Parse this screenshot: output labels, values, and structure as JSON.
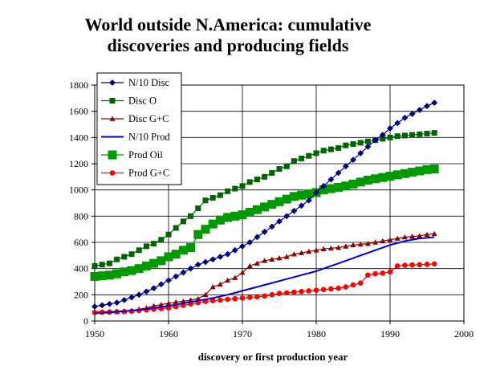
{
  "chart_data": {
    "type": "line",
    "title_lines": [
      "World outside N.America: cumulative",
      "discoveries and producing fields"
    ],
    "xlabel": "discovery or first production year",
    "ylabel": "",
    "xlim": [
      1950,
      2000
    ],
    "ylim": [
      0,
      1800
    ],
    "x_ticks": [
      1950,
      1960,
      1970,
      1980,
      1990,
      2000
    ],
    "y_ticks": [
      0,
      200,
      400,
      600,
      800,
      1000,
      1200,
      1400,
      1600,
      1800
    ],
    "grid": true,
    "legend_position": "top-left",
    "series": [
      {
        "name": "N/10 Disc",
        "color": "#000080",
        "marker": "diamond",
        "x": [
          1950,
          1951,
          1952,
          1953,
          1954,
          1955,
          1956,
          1957,
          1958,
          1959,
          1960,
          1961,
          1962,
          1963,
          1964,
          1965,
          1966,
          1967,
          1968,
          1969,
          1970,
          1971,
          1972,
          1973,
          1974,
          1975,
          1976,
          1977,
          1978,
          1979,
          1980,
          1981,
          1982,
          1983,
          1984,
          1985,
          1986,
          1987,
          1988,
          1989,
          1990,
          1991,
          1992,
          1993,
          1994,
          1995,
          1996
        ],
        "values": [
          110,
          120,
          130,
          140,
          160,
          180,
          200,
          225,
          250,
          280,
          310,
          340,
          370,
          400,
          430,
          450,
          470,
          490,
          510,
          540,
          570,
          600,
          640,
          680,
          720,
          760,
          800,
          840,
          880,
          920,
          980,
          1030,
          1080,
          1130,
          1180,
          1230,
          1280,
          1330,
          1380,
          1420,
          1470,
          1510,
          1550,
          1580,
          1610,
          1640,
          1665
        ]
      },
      {
        "name": "Disc O",
        "color": "#006400",
        "marker": "square",
        "x": [
          1950,
          1951,
          1952,
          1953,
          1954,
          1955,
          1956,
          1957,
          1958,
          1959,
          1960,
          1961,
          1962,
          1963,
          1964,
          1965,
          1966,
          1967,
          1968,
          1969,
          1970,
          1971,
          1972,
          1973,
          1974,
          1975,
          1976,
          1977,
          1978,
          1979,
          1980,
          1981,
          1982,
          1983,
          1984,
          1985,
          1986,
          1987,
          1988,
          1989,
          1990,
          1991,
          1992,
          1993,
          1994,
          1995,
          1996
        ],
        "values": [
          420,
          430,
          440,
          470,
          490,
          510,
          540,
          570,
          590,
          620,
          660,
          710,
          760,
          800,
          860,
          920,
          940,
          960,
          990,
          1010,
          1030,
          1060,
          1080,
          1100,
          1130,
          1160,
          1180,
          1220,
          1240,
          1260,
          1280,
          1300,
          1310,
          1320,
          1340,
          1350,
          1360,
          1370,
          1380,
          1390,
          1400,
          1410,
          1415,
          1420,
          1425,
          1430,
          1435
        ]
      },
      {
        "name": "Disc G+C",
        "color": "#8B0000",
        "marker": "triangle",
        "x": [
          1950,
          1951,
          1952,
          1953,
          1954,
          1955,
          1956,
          1957,
          1958,
          1959,
          1960,
          1961,
          1962,
          1963,
          1964,
          1965,
          1966,
          1967,
          1968,
          1969,
          1970,
          1971,
          1972,
          1973,
          1974,
          1975,
          1976,
          1977,
          1978,
          1979,
          1980,
          1981,
          1982,
          1983,
          1984,
          1985,
          1986,
          1987,
          1988,
          1989,
          1990,
          1991,
          1992,
          1993,
          1994,
          1995,
          1996
        ],
        "values": [
          70,
          70,
          72,
          74,
          76,
          80,
          90,
          100,
          115,
          125,
          135,
          145,
          150,
          160,
          170,
          200,
          260,
          280,
          310,
          330,
          370,
          420,
          440,
          460,
          470,
          480,
          490,
          510,
          520,
          530,
          540,
          550,
          555,
          560,
          570,
          580,
          585,
          590,
          600,
          610,
          620,
          630,
          640,
          645,
          650,
          660,
          665
        ]
      },
      {
        "name": "N/10 Prod",
        "color": "#0000CC",
        "marker": "none",
        "x": [
          1950,
          1952,
          1954,
          1956,
          1958,
          1960,
          1962,
          1964,
          1966,
          1968,
          1970,
          1972,
          1974,
          1976,
          1978,
          1980,
          1982,
          1984,
          1986,
          1988,
          1990,
          1992,
          1994,
          1996
        ],
        "values": [
          60,
          65,
          75,
          85,
          100,
          115,
          135,
          155,
          175,
          200,
          230,
          260,
          290,
          320,
          350,
          380,
          420,
          460,
          500,
          540,
          580,
          610,
          630,
          640
        ]
      },
      {
        "name": "Prod Oil",
        "color": "#009900",
        "marker": "bigsquare",
        "x": [
          1950,
          1951,
          1952,
          1953,
          1954,
          1955,
          1956,
          1957,
          1958,
          1959,
          1960,
          1961,
          1962,
          1963,
          1964,
          1965,
          1966,
          1967,
          1968,
          1969,
          1970,
          1971,
          1972,
          1973,
          1974,
          1975,
          1976,
          1977,
          1978,
          1979,
          1980,
          1981,
          1982,
          1983,
          1984,
          1985,
          1986,
          1987,
          1988,
          1989,
          1990,
          1991,
          1992,
          1993,
          1994,
          1995,
          1996
        ],
        "values": [
          340,
          345,
          350,
          360,
          375,
          385,
          400,
          420,
          440,
          460,
          490,
          510,
          540,
          560,
          660,
          700,
          740,
          770,
          790,
          800,
          810,
          830,
          850,
          870,
          890,
          910,
          930,
          950,
          960,
          970,
          980,
          1000,
          1010,
          1020,
          1030,
          1045,
          1060,
          1075,
          1085,
          1095,
          1105,
          1115,
          1125,
          1135,
          1145,
          1155,
          1160
        ]
      },
      {
        "name": "Prod G+C",
        "color": "#FF0000",
        "marker": "circle",
        "x": [
          1950,
          1951,
          1952,
          1953,
          1954,
          1955,
          1956,
          1957,
          1958,
          1959,
          1960,
          1961,
          1962,
          1963,
          1964,
          1965,
          1966,
          1967,
          1968,
          1969,
          1970,
          1971,
          1972,
          1973,
          1974,
          1975,
          1976,
          1977,
          1978,
          1979,
          1980,
          1981,
          1982,
          1983,
          1984,
          1985,
          1986,
          1987,
          1988,
          1989,
          1990,
          1991,
          1992,
          1993,
          1994,
          1995,
          1996
        ],
        "values": [
          65,
          66,
          68,
          70,
          72,
          75,
          80,
          85,
          90,
          95,
          100,
          110,
          120,
          130,
          140,
          150,
          155,
          160,
          165,
          170,
          175,
          180,
          185,
          190,
          200,
          210,
          215,
          220,
          225,
          230,
          235,
          240,
          245,
          250,
          260,
          275,
          290,
          350,
          360,
          365,
          375,
          420,
          425,
          428,
          430,
          432,
          435
        ]
      }
    ]
  }
}
